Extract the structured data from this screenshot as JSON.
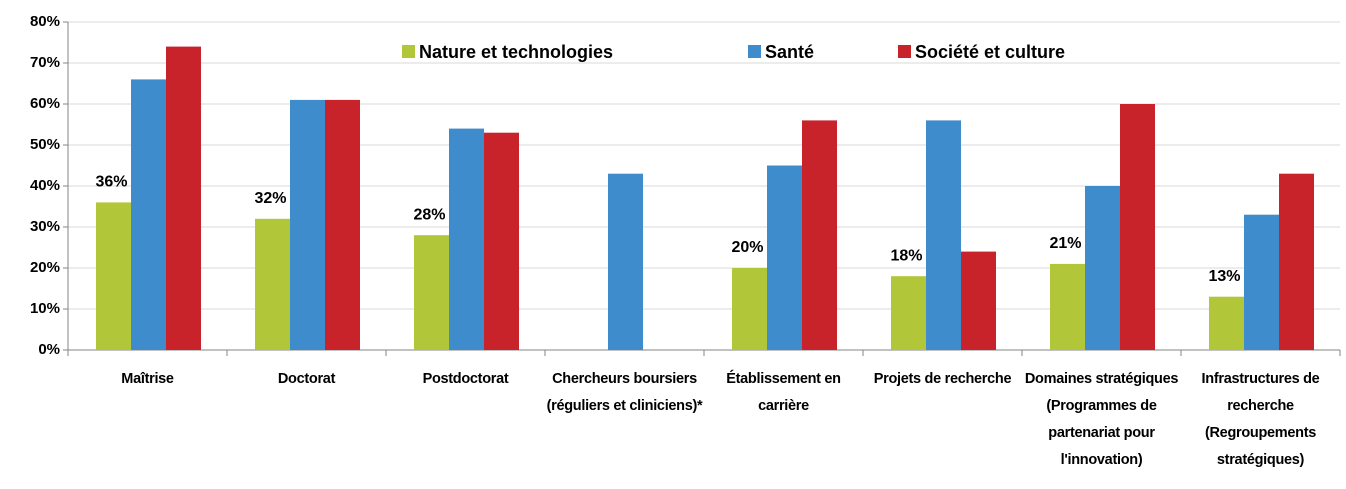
{
  "chart_data": {
    "type": "bar",
    "categories": [
      "Maîtrise",
      "Doctorat",
      "Postdoctorat",
      "Chercheurs boursiers (réguliers et cliniciens)*",
      "Établissement en carrière",
      "Projets de recherche",
      "Domaines stratégiques (Programmes de partenariat pour l'innovation)",
      "Infrastructures de recherche (Regroupements stratégiques)"
    ],
    "series": [
      {
        "name": "Nature et technologies",
        "color": "#b2c63a",
        "values": [
          36,
          32,
          28,
          null,
          20,
          18,
          21,
          13
        ],
        "value_labels": [
          "36%",
          "32%",
          "28%",
          null,
          "20%",
          "18%",
          "21%",
          "13%"
        ]
      },
      {
        "name": "Santé",
        "color": "#3f8ccc",
        "values": [
          66,
          61,
          54,
          43,
          45,
          56,
          40,
          33
        ]
      },
      {
        "name": "Société et culture",
        "color": "#c8222b",
        "values": [
          74,
          61,
          53,
          null,
          56,
          24,
          60,
          43
        ]
      }
    ],
    "ylim": [
      0,
      80
    ],
    "yticks": [
      {
        "value": 0,
        "label": "0%"
      },
      {
        "value": 10,
        "label": "10%"
      },
      {
        "value": 20,
        "label": "20%"
      },
      {
        "value": 30,
        "label": "30%"
      },
      {
        "value": 40,
        "label": "40%"
      },
      {
        "value": 50,
        "label": "50%"
      },
      {
        "value": 60,
        "label": "60%"
      },
      {
        "value": 70,
        "label": "70%"
      },
      {
        "value": 80,
        "label": "80%"
      }
    ],
    "grid": true,
    "legend": "top"
  }
}
